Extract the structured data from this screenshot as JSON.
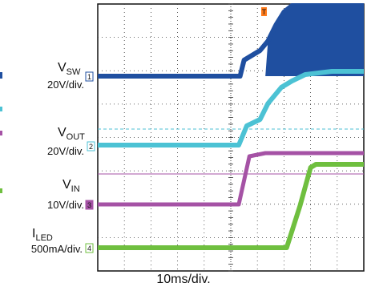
{
  "chart_data": {
    "type": "line",
    "x_scale": "10ms/div.",
    "time_axis": {
      "divisions": 10,
      "range_div": [
        0,
        10
      ]
    },
    "trigger_marker": "T",
    "channels": [
      {
        "id": "1",
        "name": "SW",
        "scale": "20V/div.",
        "color": "#1f4fa0",
        "ground_div": 0,
        "points": [
          [
            0,
            0
          ],
          [
            5.35,
            0
          ],
          [
            5.5,
            0.5
          ],
          [
            6.1,
            0.8
          ],
          [
            6.4,
            1.1
          ],
          [
            6.7,
            1.6
          ],
          [
            7,
            2
          ],
          [
            7.3,
            2.2
          ],
          [
            10,
            2.2
          ]
        ],
        "switching_from_div": 6.3
      },
      {
        "id": "2",
        "name": "OUT",
        "scale": "20V/div.",
        "color": "#4cc2d4",
        "ground_div": 0,
        "points": [
          [
            0,
            0
          ],
          [
            5.3,
            0
          ],
          [
            5.6,
            0.6
          ],
          [
            6.1,
            0.8
          ],
          [
            6.4,
            1.3
          ],
          [
            6.9,
            1.8
          ],
          [
            7.3,
            2
          ],
          [
            7.8,
            2.2
          ],
          [
            8.8,
            2.3
          ],
          [
            10,
            2.3
          ]
        ]
      },
      {
        "id": "3",
        "name": "IN",
        "scale": "10V/div.",
        "color": "#a552a5",
        "ground_div": 0,
        "points": [
          [
            0,
            0
          ],
          [
            5.3,
            0
          ],
          [
            5.7,
            1.5
          ],
          [
            6.3,
            1.6
          ],
          [
            10,
            1.6
          ]
        ]
      },
      {
        "id": "4",
        "name": "LED",
        "scale": "500mA/div.",
        "color": "#6fbf3f",
        "ground_div": 0,
        "points": [
          [
            0,
            0
          ],
          [
            7.1,
            0
          ],
          [
            7.6,
            1.3
          ],
          [
            8.0,
            2.5
          ],
          [
            8.2,
            2.6
          ],
          [
            10,
            2.6
          ]
        ]
      }
    ],
    "reference_lines": [
      {
        "channel": "2",
        "level_div": 0.5,
        "style": "dashed"
      },
      {
        "channel": "3",
        "level_div": 0.95,
        "style": "solid"
      }
    ]
  },
  "labels": {
    "sw": {
      "main": "V",
      "sub": "SW",
      "scale": "20V/div."
    },
    "out": {
      "main": "V",
      "sub": "OUT",
      "scale": "20V/div."
    },
    "in": {
      "main": "V",
      "sub": "IN",
      "scale": "10V/div."
    },
    "led": {
      "main": "I",
      "sub": "LED",
      "scale": "500mA/div."
    }
  }
}
